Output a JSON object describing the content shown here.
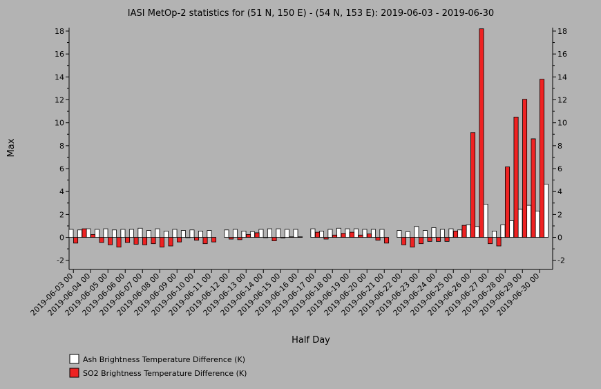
{
  "chart_data": {
    "type": "bar",
    "title": "IASI MetOp-2 statistics for (51 N, 150 E) - (54 N, 153 E): 2019-06-03 - 2019-06-30",
    "xlabel": "Half Day",
    "ylabel": "Max",
    "ylim": [
      -2.8,
      18.3
    ],
    "yticks": [
      -2,
      0,
      2,
      4,
      6,
      8,
      10,
      12,
      14,
      16,
      18
    ],
    "grid": false,
    "legend_position": "bottom-left",
    "categories": [
      "2019-06-03 00",
      "2019-06-03 12",
      "2019-06-04 00",
      "2019-06-04 12",
      "2019-06-05 00",
      "2019-06-05 12",
      "2019-06-06 00",
      "2019-06-06 12",
      "2019-06-07 00",
      "2019-06-07 12",
      "2019-06-08 00",
      "2019-06-08 12",
      "2019-06-09 00",
      "2019-06-09 12",
      "2019-06-10 00",
      "2019-06-10 12",
      "2019-06-11 00",
      "2019-06-11 12",
      "2019-06-12 00",
      "2019-06-12 12",
      "2019-06-13 00",
      "2019-06-13 12",
      "2019-06-14 00",
      "2019-06-14 12",
      "2019-06-15 00",
      "2019-06-15 12",
      "2019-06-16 00",
      "2019-06-16 12",
      "2019-06-17 00",
      "2019-06-17 12",
      "2019-06-18 00",
      "2019-06-18 12",
      "2019-06-19 00",
      "2019-06-19 12",
      "2019-06-20 00",
      "2019-06-20 12",
      "2019-06-21 00",
      "2019-06-21 12",
      "2019-06-22 00",
      "2019-06-22 12",
      "2019-06-23 00",
      "2019-06-23 12",
      "2019-06-24 00",
      "2019-06-24 12",
      "2019-06-25 00",
      "2019-06-25 12",
      "2019-06-26 00",
      "2019-06-26 12",
      "2019-06-27 00",
      "2019-06-27 12",
      "2019-06-28 00",
      "2019-06-28 12",
      "2019-06-29 00",
      "2019-06-29 12",
      "2019-06-30 00",
      "2019-06-30 12"
    ],
    "tick_labels": [
      "2019-06-03 00",
      "2019-06-04 00",
      "2019-06-05 00",
      "2019-06-06 00",
      "2019-06-07 00",
      "2019-06-08 00",
      "2019-06-09 00",
      "2019-06-10 00",
      "2019-06-11 00",
      "2019-06-12 00",
      "2019-06-13 00",
      "2019-06-14 00",
      "2019-06-15 00",
      "2019-06-16 00",
      "2019-06-17 00",
      "2019-06-18 00",
      "2019-06-19 00",
      "2019-06-20 00",
      "2019-06-21 00",
      "2019-06-22 00",
      "2019-06-23 00",
      "2019-06-24 00",
      "2019-06-25 00",
      "2019-06-26 00",
      "2019-06-27 00",
      "2019-06-28 00",
      "2019-06-29 00",
      "2019-06-30 00"
    ],
    "series": [
      {
        "name": "Ash Brightness Temperature Difference (K)",
        "color": "#ffffff",
        "values": [
          0.7,
          0.65,
          0.75,
          0.7,
          0.75,
          0.65,
          0.7,
          0.7,
          0.8,
          0.6,
          0.75,
          0.55,
          0.7,
          0.6,
          0.65,
          0.55,
          0.6,
          null,
          0.65,
          0.7,
          0.55,
          0.5,
          0.7,
          0.75,
          0.75,
          0.7,
          0.7,
          null,
          0.75,
          0.55,
          0.7,
          0.8,
          0.75,
          0.75,
          0.7,
          0.7,
          0.7,
          null,
          0.6,
          0.5,
          0.95,
          0.6,
          0.85,
          0.7,
          0.75,
          0.65,
          1.1,
          0.95,
          2.9,
          0.55,
          1.1,
          1.45,
          2.45,
          2.8,
          2.3,
          4.65
        ]
      },
      {
        "name": "SO2 Brightness Temperature Difference (K)",
        "color": "#ee2222",
        "values": [
          -0.5,
          0.75,
          0.25,
          -0.45,
          -0.65,
          -0.85,
          -0.45,
          -0.6,
          -0.65,
          -0.55,
          -0.85,
          -0.75,
          -0.4,
          0.0,
          -0.25,
          -0.55,
          -0.4,
          null,
          -0.15,
          -0.2,
          0.25,
          0.4,
          0.0,
          -0.3,
          -0.05,
          0.05,
          0.05,
          null,
          0.45,
          -0.15,
          0.2,
          0.35,
          0.45,
          0.2,
          0.3,
          -0.25,
          -0.5,
          null,
          -0.65,
          -0.85,
          -0.55,
          -0.35,
          -0.35,
          -0.35,
          0.55,
          1.05,
          9.15,
          18.2,
          -0.55,
          -0.75,
          6.15,
          10.5,
          12.05,
          8.6,
          13.8,
          null
        ]
      }
    ]
  }
}
